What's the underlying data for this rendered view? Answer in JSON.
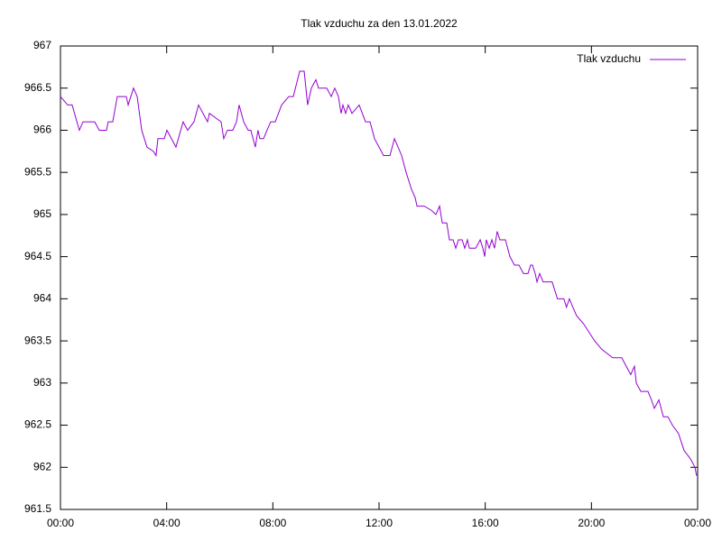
{
  "chart_data": {
    "type": "line",
    "title": "Tlak vzduchu za den 13.01.2022",
    "x": [
      0,
      0.27,
      0.44,
      0.71,
      0.85,
      1.29,
      1.46,
      1.73,
      1.8,
      1.97,
      2.14,
      2.48,
      2.55,
      2.65,
      2.75,
      2.89,
      3.06,
      3.26,
      3.5,
      3.6,
      3.67,
      3.91,
      4.01,
      4.35,
      4.62,
      4.79,
      5.03,
      5.2,
      5.37,
      5.54,
      5.61,
      6.05,
      6.15,
      6.29,
      6.49,
      6.63,
      6.73,
      6.9,
      7.07,
      7.17,
      7.34,
      7.44,
      7.51,
      7.65,
      7.78,
      7.92,
      8.09,
      8.33,
      8.6,
      8.77,
      9.01,
      9.18,
      9.31,
      9.45,
      9.62,
      9.72,
      10.03,
      10.2,
      10.33,
      10.47,
      10.57,
      10.64,
      10.74,
      10.84,
      10.98,
      11.25,
      11.49,
      11.66,
      11.83,
      12,
      12.17,
      12.41,
      12.58,
      12.85,
      13.02,
      13.22,
      13.36,
      13.43,
      13.7,
      13.97,
      14.14,
      14.28,
      14.38,
      14.55,
      14.65,
      14.79,
      14.89,
      14.99,
      15.13,
      15.23,
      15.33,
      15.4,
      15.64,
      15.81,
      15.91,
      15.98,
      16.04,
      16.15,
      16.25,
      16.35,
      16.45,
      16.55,
      16.76,
      16.93,
      17.1,
      17.27,
      17.44,
      17.61,
      17.71,
      17.78,
      17.88,
      17.95,
      18.05,
      18.18,
      18.52,
      18.72,
      18.96,
      19.06,
      19.17,
      19.3,
      19.44,
      19.71,
      20.12,
      20.39,
      20.8,
      21.14,
      21.31,
      21.48,
      21.62,
      21.69,
      21.86,
      22.13,
      22.26,
      22.37,
      22.54,
      22.71,
      22.88,
      23.05,
      23.28,
      23.49,
      23.73,
      23.9,
      23.96
    ],
    "series": [
      {
        "name": "Tlak vzduchu",
        "color": "#9400d3",
        "values": [
          966.4,
          966.3,
          966.3,
          966.0,
          966.1,
          966.1,
          966.0,
          966.0,
          966.1,
          966.1,
          966.4,
          966.4,
          966.3,
          966.4,
          966.5,
          966.4,
          966.0,
          965.8,
          965.75,
          965.7,
          965.9,
          965.9,
          966.0,
          965.8,
          966.1,
          966.0,
          966.1,
          966.3,
          966.2,
          966.1,
          966.2,
          966.1,
          965.9,
          966.0,
          966.0,
          966.1,
          966.3,
          966.1,
          966.0,
          966.0,
          965.8,
          966.0,
          965.9,
          965.9,
          966.0,
          966.1,
          966.1,
          966.3,
          966.4,
          966.4,
          966.7,
          966.7,
          966.3,
          966.5,
          966.6,
          966.5,
          966.5,
          966.4,
          966.5,
          966.4,
          966.2,
          966.3,
          966.2,
          966.3,
          966.2,
          966.3,
          966.1,
          966.1,
          965.9,
          965.8,
          965.7,
          965.7,
          965.9,
          965.7,
          965.5,
          965.3,
          965.2,
          965.1,
          965.1,
          965.05,
          965.0,
          965.1,
          964.9,
          964.9,
          964.7,
          964.7,
          964.6,
          964.7,
          964.7,
          964.6,
          964.7,
          964.6,
          964.6,
          964.7,
          964.6,
          964.5,
          964.7,
          964.6,
          964.7,
          964.6,
          964.8,
          964.7,
          964.7,
          964.5,
          964.4,
          964.4,
          964.3,
          964.3,
          964.4,
          964.4,
          964.3,
          964.2,
          964.3,
          964.2,
          964.2,
          964.0,
          964.0,
          963.9,
          964.0,
          963.9,
          963.8,
          963.7,
          963.5,
          963.4,
          963.3,
          963.3,
          963.2,
          963.1,
          963.2,
          963.0,
          962.9,
          962.9,
          962.8,
          962.7,
          962.8,
          962.6,
          962.6,
          962.5,
          962.4,
          962.2,
          962.1,
          962.0,
          961.9
        ]
      }
    ],
    "xlim": [
      0,
      24
    ],
    "xticks": [
      {
        "value": 0,
        "label": "00:00"
      },
      {
        "value": 4,
        "label": "04:00"
      },
      {
        "value": 8,
        "label": "08:00"
      },
      {
        "value": 12,
        "label": "12:00"
      },
      {
        "value": 16,
        "label": "16:00"
      },
      {
        "value": 20,
        "label": "20:00"
      },
      {
        "value": 24,
        "label": "00:00"
      }
    ],
    "ylim": [
      961.5,
      967
    ],
    "yticks": [
      961.5,
      962,
      962.5,
      963,
      963.5,
      964,
      964.5,
      965,
      965.5,
      966,
      966.5,
      967
    ],
    "legend": "top-right"
  }
}
